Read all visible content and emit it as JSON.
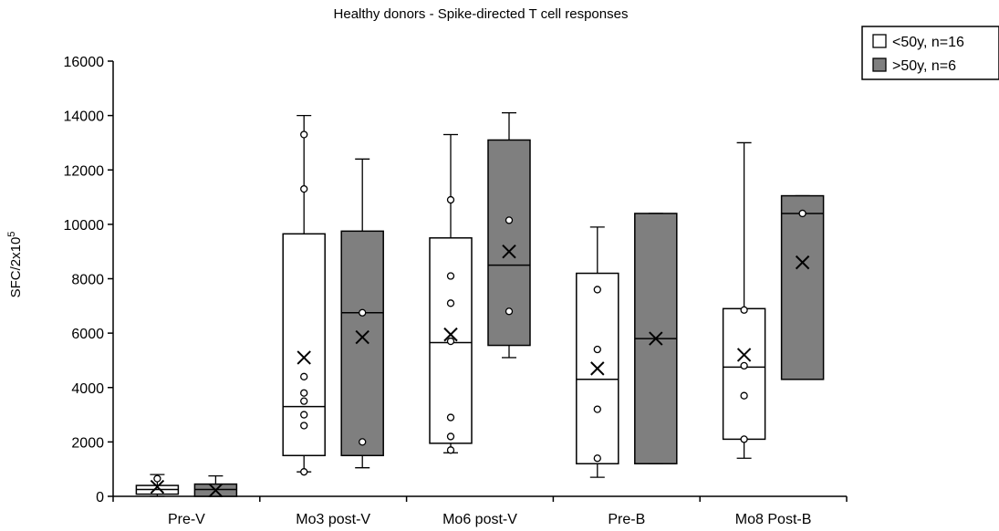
{
  "chart_data": {
    "type": "box",
    "title": "Healthy donors - Spike-directed T cell responses",
    "ylabel_base": "SFC/2x10",
    "ylabel_exp": "5",
    "xlabel": "",
    "ylim": [
      0,
      16000
    ],
    "yticks": [
      0,
      2000,
      4000,
      6000,
      8000,
      10000,
      12000,
      14000,
      16000
    ],
    "categories": [
      "Pre-V",
      "Mo3 post-V",
      "Mo6 post-V",
      "Pre-B",
      "Mo8 Post-B"
    ],
    "legend_position": "top-right",
    "series": [
      {
        "name": "<50y, n=16",
        "fill": "#ffffff",
        "boxes": [
          {
            "q1": 80,
            "median": 250,
            "q3": 400,
            "whisker_low": 0,
            "whisker_high": 800,
            "mean": 350,
            "outliers": [
              650
            ]
          },
          {
            "q1": 1500,
            "median": 3300,
            "q3": 9650,
            "whisker_low": 900,
            "whisker_high": 14000,
            "mean": 5100,
            "outliers": [
              900,
              2600,
              3000,
              3500,
              3800,
              4400,
              11300,
              13300
            ]
          },
          {
            "q1": 1950,
            "median": 5650,
            "q3": 9500,
            "whisker_low": 1600,
            "whisker_high": 13300,
            "mean": 5950,
            "outliers": [
              1700,
              2200,
              2900,
              5700,
              7100,
              8100,
              10900
            ]
          },
          {
            "q1": 1200,
            "median": 4300,
            "q3": 8200,
            "whisker_low": 700,
            "whisker_high": 9900,
            "mean": 4700,
            "outliers": [
              1400,
              3200,
              5400,
              7600
            ]
          },
          {
            "q1": 2100,
            "median": 4750,
            "q3": 6900,
            "whisker_low": 1400,
            "whisker_high": 13000,
            "mean": 5200,
            "outliers": [
              2100,
              3700,
              4800,
              6850
            ]
          }
        ]
      },
      {
        "name": ">50y, n=6",
        "fill": "#7f7f7f",
        "boxes": [
          {
            "q1": 0,
            "median": 250,
            "q3": 450,
            "whisker_low": 0,
            "whisker_high": 750,
            "mean": 220,
            "outliers": []
          },
          {
            "q1": 1500,
            "median": 6750,
            "q3": 9750,
            "whisker_low": 1050,
            "whisker_high": 12400,
            "mean": 5850,
            "outliers": [
              2000,
              6750
            ]
          },
          {
            "q1": 5550,
            "median": 8500,
            "q3": 13100,
            "whisker_low": 5100,
            "whisker_high": 14100,
            "mean": 9000,
            "outliers": [
              6800,
              10150
            ]
          },
          {
            "q1": 1200,
            "median": 5800,
            "q3": 10400,
            "whisker_low": 1200,
            "whisker_high": 10400,
            "mean": 5800,
            "outliers": []
          },
          {
            "q1": 4300,
            "median": 10400,
            "q3": 11050,
            "whisker_low": 4300,
            "whisker_high": 11050,
            "mean": 8600,
            "outliers": [
              10400
            ]
          }
        ]
      }
    ]
  }
}
